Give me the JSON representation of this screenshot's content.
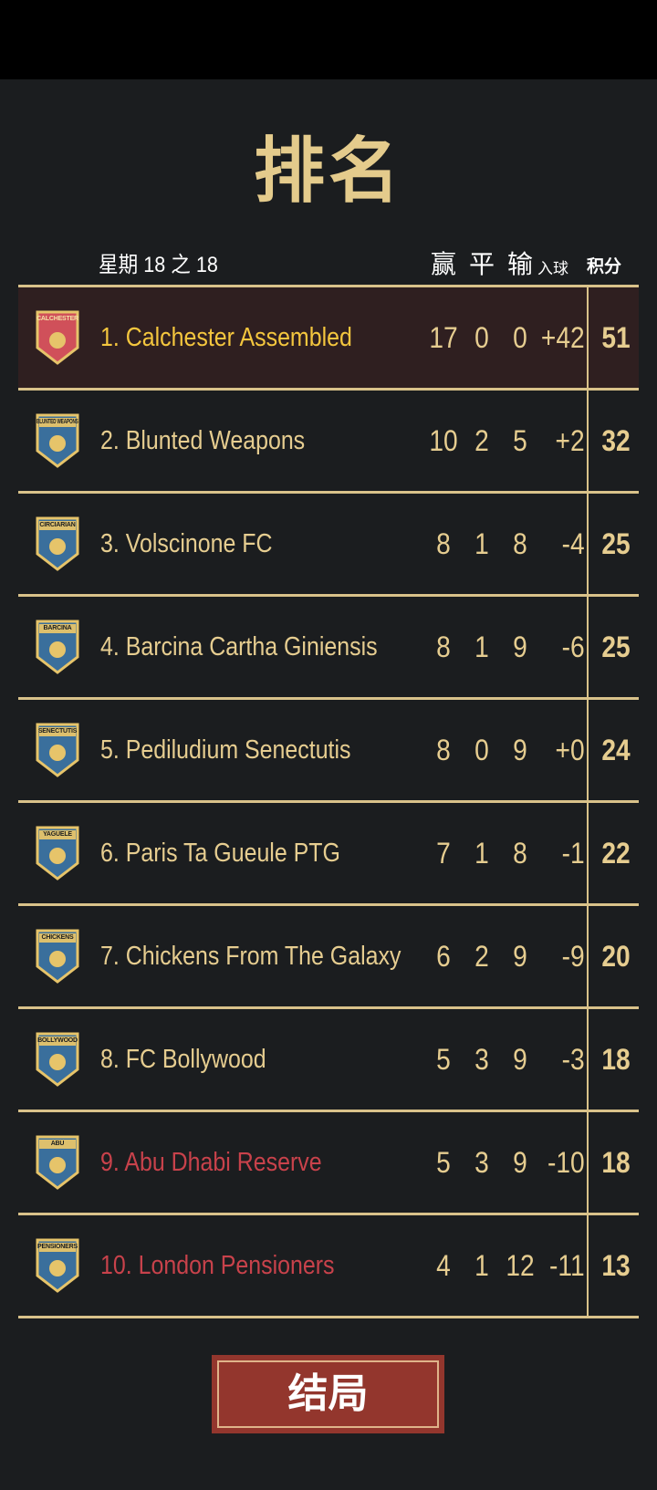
{
  "title": "排名",
  "week_label": "星期 18 之 18",
  "columns": {
    "won": "赢",
    "drawn": "平",
    "lost": "输",
    "goal_diff": "入球",
    "points": "积分"
  },
  "colors": {
    "gold": "#e6cd90",
    "highlight_name": "#f4c63e",
    "relegation_name": "#c8424b",
    "highlight_row": "#2f1f20",
    "button": "#93362d"
  },
  "teams": [
    {
      "name": "1. Calchester Assembled",
      "badge": "CALCHESTER",
      "badge_color": "#d0505a",
      "w": "17",
      "d": "0",
      "l": "0",
      "gd": "+42",
      "pts": "51",
      "highlight": true,
      "relegation": false
    },
    {
      "name": "2. Blunted Weapons",
      "badge": "BLUNTED WEAPONS",
      "badge_color": "#3a6f9c",
      "w": "10",
      "d": "2",
      "l": "5",
      "gd": "+2",
      "pts": "32",
      "highlight": false,
      "relegation": false
    },
    {
      "name": "3. Volscinone FC",
      "badge": "CIRCIARIAN",
      "badge_color": "#3a6f9c",
      "w": "8",
      "d": "1",
      "l": "8",
      "gd": "-4",
      "pts": "25",
      "highlight": false,
      "relegation": false
    },
    {
      "name": "4. Barcina Cartha Giniensis",
      "badge": "BARCINA",
      "badge_color": "#3a6f9c",
      "w": "8",
      "d": "1",
      "l": "9",
      "gd": "-6",
      "pts": "25",
      "highlight": false,
      "relegation": false
    },
    {
      "name": "5. Pediludium Senectutis",
      "badge": "SENECTUTIS",
      "badge_color": "#3a6f9c",
      "w": "8",
      "d": "0",
      "l": "9",
      "gd": "+0",
      "pts": "24",
      "highlight": false,
      "relegation": false
    },
    {
      "name": "6. Paris Ta Gueule PTG",
      "badge": "YAGUELE",
      "badge_color": "#3a6f9c",
      "w": "7",
      "d": "1",
      "l": "8",
      "gd": "-1",
      "pts": "22",
      "highlight": false,
      "relegation": false
    },
    {
      "name": "7. Chickens From The Galaxy",
      "badge": "CHICKENS",
      "badge_color": "#3a6f9c",
      "w": "6",
      "d": "2",
      "l": "9",
      "gd": "-9",
      "pts": "20",
      "highlight": false,
      "relegation": false
    },
    {
      "name": "8. FC Bollywood",
      "badge": "BOLLYWOOD",
      "badge_color": "#3a6f9c",
      "w": "5",
      "d": "3",
      "l": "9",
      "gd": "-3",
      "pts": "18",
      "highlight": false,
      "relegation": false
    },
    {
      "name": "9. Abu Dhabi Reserve",
      "badge": "ABU",
      "badge_color": "#3a6f9c",
      "w": "5",
      "d": "3",
      "l": "9",
      "gd": "-10",
      "pts": "18",
      "highlight": false,
      "relegation": true
    },
    {
      "name": "10. London Pensioners",
      "badge": "PENSIONERS",
      "badge_color": "#3a6f9c",
      "w": "4",
      "d": "1",
      "l": "12",
      "gd": "-11",
      "pts": "13",
      "highlight": false,
      "relegation": true
    }
  ],
  "button": {
    "label": "结局"
  }
}
